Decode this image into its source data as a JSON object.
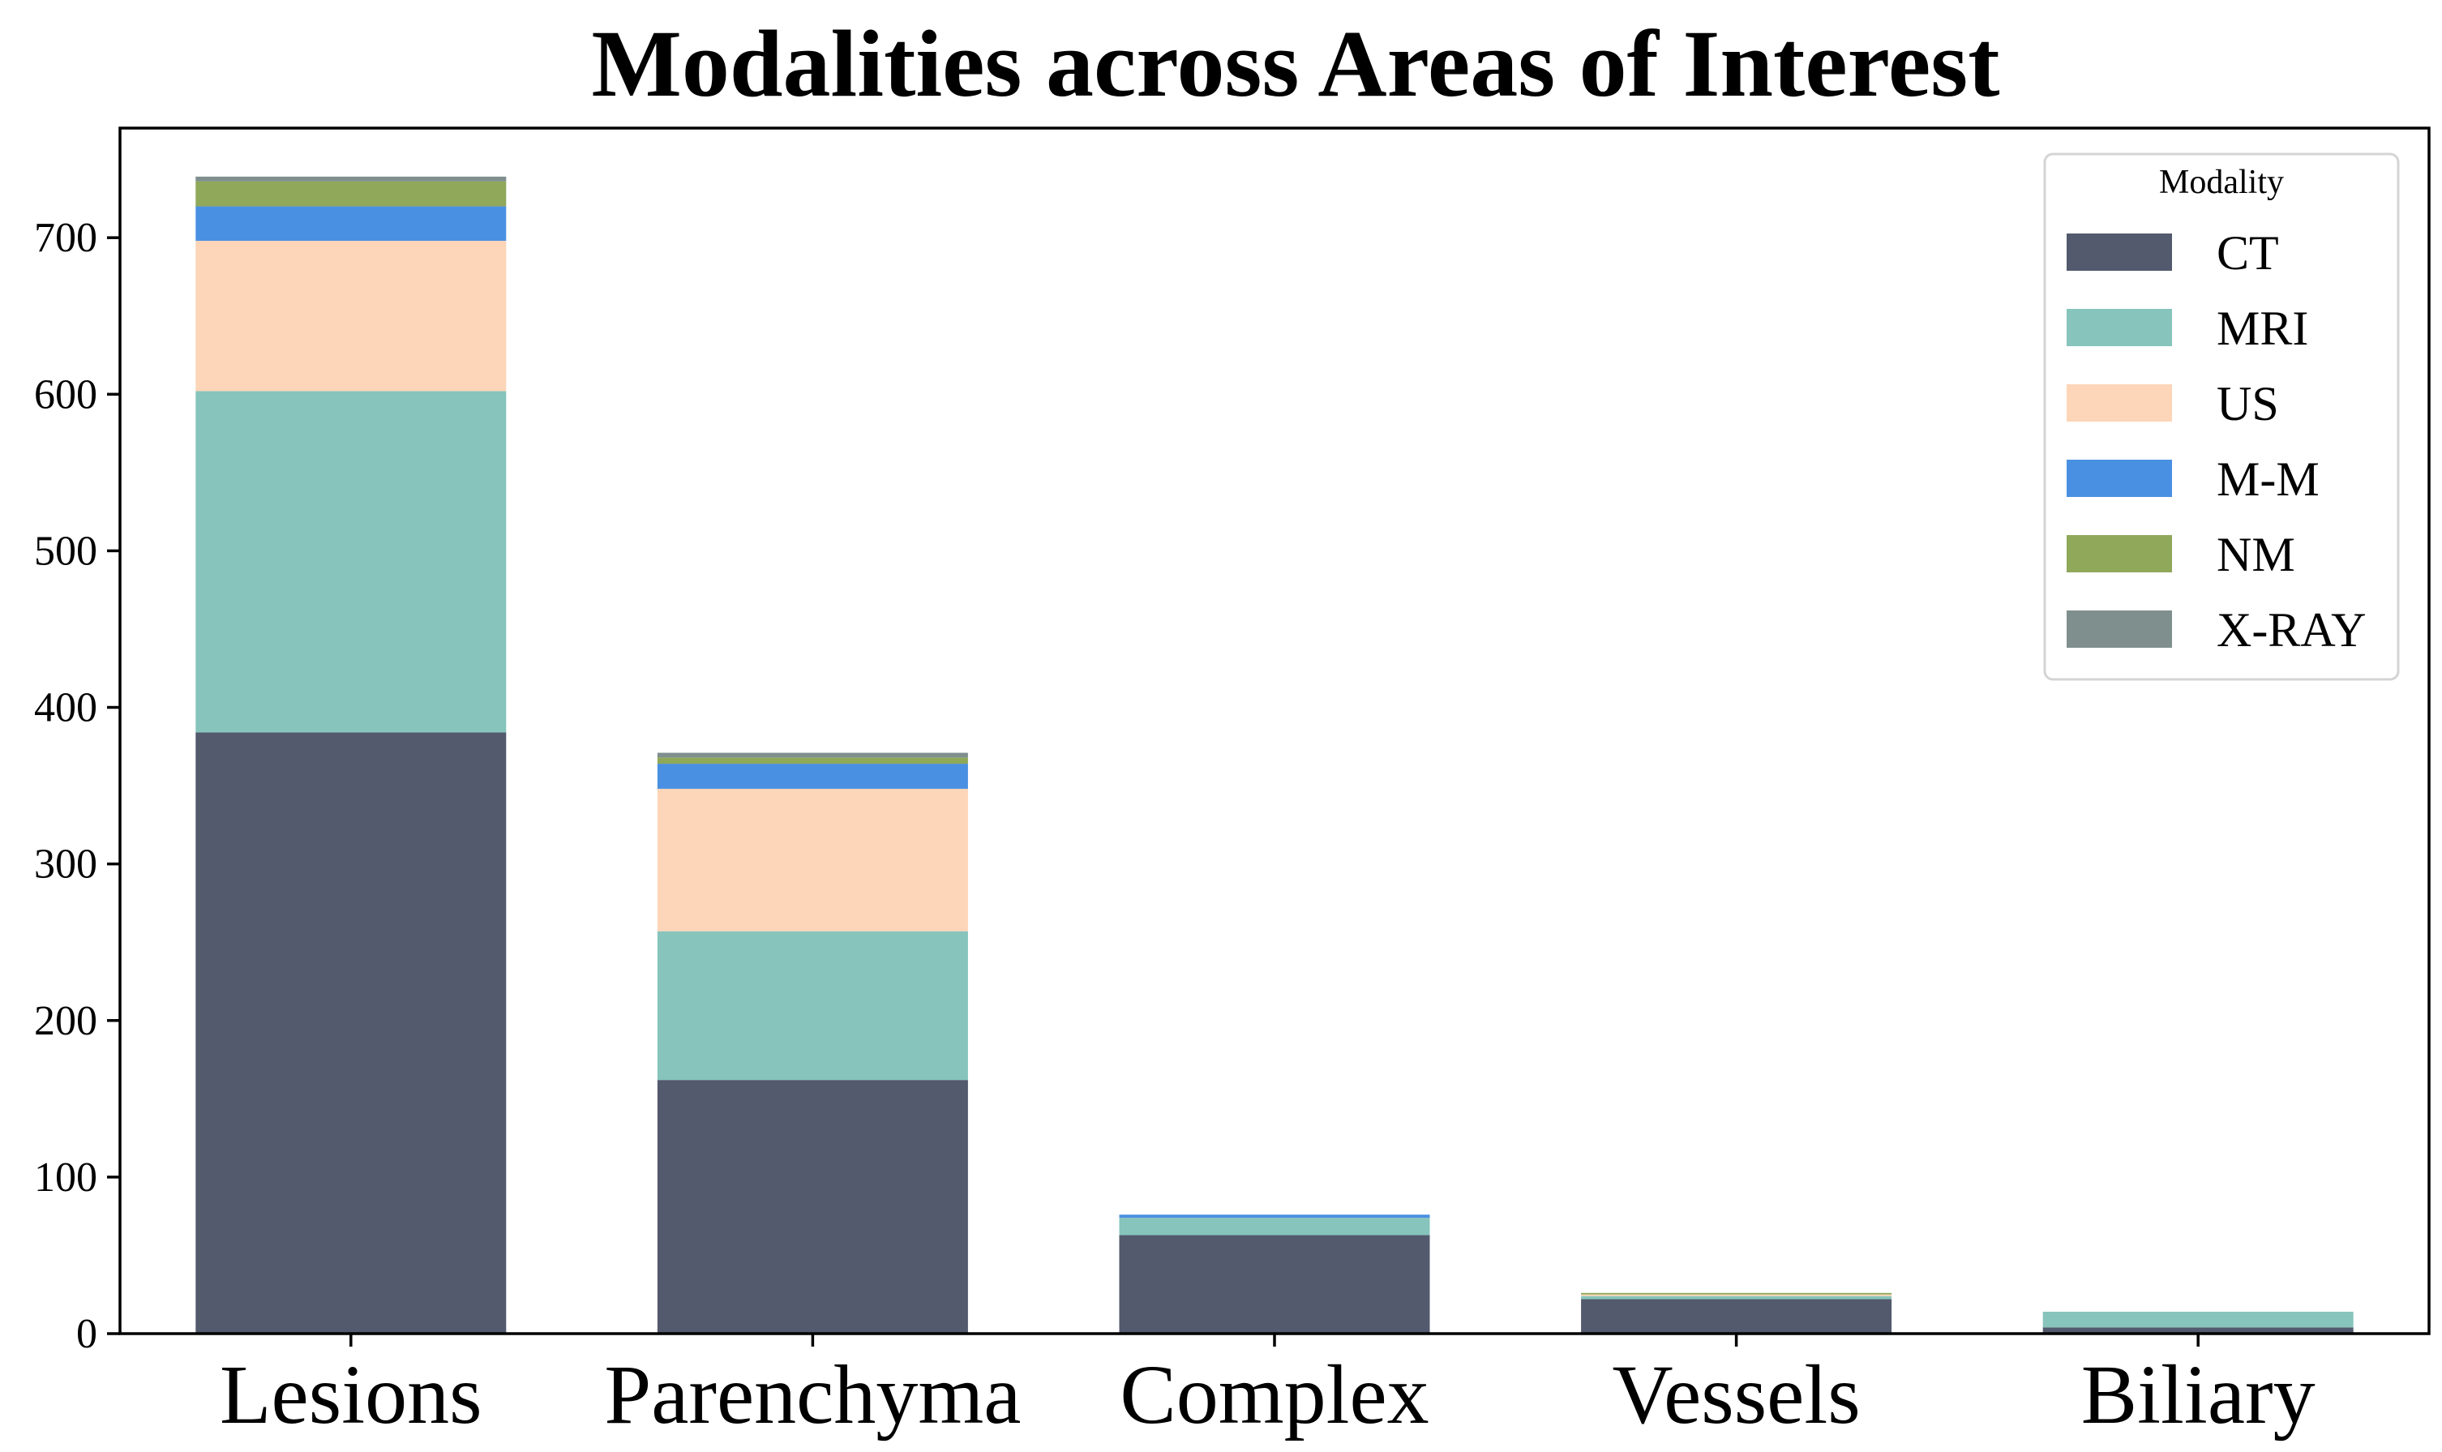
{
  "chart_data": {
    "type": "bar",
    "stacked": true,
    "title": "Modalities across Areas of Interest",
    "xlabel": "",
    "ylabel": "",
    "categories": [
      "Lesions",
      "Parenchyma",
      "Complex",
      "Vessels",
      "Biliary"
    ],
    "ylim": [
      0,
      770
    ],
    "yticks": [
      0,
      100,
      200,
      300,
      400,
      500,
      600,
      700
    ],
    "legend_title": "Modality",
    "legend_position": "top-right",
    "grid": false,
    "series": [
      {
        "name": "CT",
        "color": "#535a6d",
        "values": [
          384,
          162,
          63,
          22,
          4
        ]
      },
      {
        "name": "MRI",
        "color": "#86c4bc",
        "values": [
          218,
          95,
          11,
          2,
          10
        ]
      },
      {
        "name": "US",
        "color": "#fdd5b8",
        "values": [
          96,
          91,
          0,
          1,
          0
        ]
      },
      {
        "name": "M-M",
        "color": "#4a90e2",
        "values": [
          22,
          16,
          2,
          0,
          0
        ]
      },
      {
        "name": "NM",
        "color": "#8fa85a",
        "values": [
          16,
          4,
          0,
          1,
          0
        ]
      },
      {
        "name": "X-RAY",
        "color": "#7f8f8d",
        "values": [
          3,
          3,
          0,
          0,
          0
        ]
      }
    ]
  }
}
